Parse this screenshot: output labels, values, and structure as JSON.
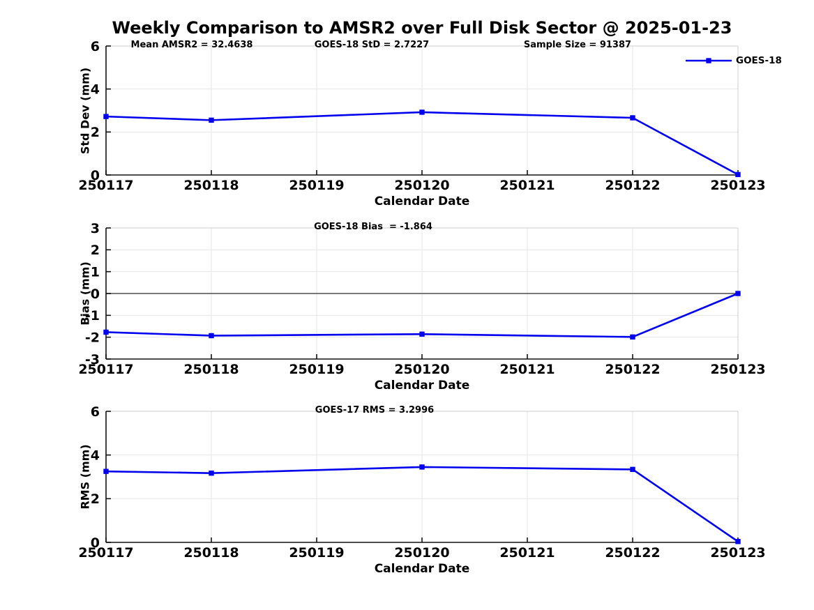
{
  "header": {
    "title": "Weekly Comparison to AMSR2 over Full Disk Sector @ 2025-01-23"
  },
  "legend": {
    "series": "GOES-18",
    "position": "upper-right-outside"
  },
  "x_axis": {
    "label": "Calendar Date",
    "categories": [
      "250117",
      "250118",
      "250119",
      "250120",
      "250121",
      "250122",
      "250123"
    ]
  },
  "colors": {
    "line": "#0000EE",
    "grid": "#e6e6e6",
    "box": "#cccccc",
    "axis": "#111111",
    "zero_line": "#4d4d4d",
    "text": "#000000",
    "background": "#ffffff"
  },
  "chart_data": [
    {
      "id": "stddev",
      "type": "line",
      "ylabel": "Std Dev (mm)",
      "xlabel": "Calendar Date",
      "ylim": [
        0,
        6
      ],
      "yticks": [
        0,
        2,
        4,
        6
      ],
      "grid": true,
      "zero_line": false,
      "show_legend": true,
      "annotations": [
        "Mean AMSR2 = 32.4638",
        "GOES-18 StD = 2.7227",
        "Sample Size = 91387"
      ],
      "series": [
        {
          "name": "GOES-18",
          "marker": "square",
          "x": [
            "250117",
            "250118",
            "250120",
            "250122",
            "250123"
          ],
          "y": [
            2.72,
            2.55,
            2.92,
            2.66,
            0.02
          ]
        }
      ]
    },
    {
      "id": "bias",
      "type": "line",
      "ylabel": "Bias (mm)",
      "xlabel": "Calendar Date",
      "ylim": [
        -3,
        3
      ],
      "yticks": [
        3,
        2,
        1,
        0,
        -1,
        -2,
        -3
      ],
      "grid": true,
      "zero_line": true,
      "show_legend": false,
      "annotations": [
        "GOES-18 Bias  = -1.864"
      ],
      "series": [
        {
          "name": "GOES-18",
          "marker": "square",
          "x": [
            "250117",
            "250118",
            "250120",
            "250122",
            "250123"
          ],
          "y": [
            -1.77,
            -1.93,
            -1.86,
            -1.99,
            0.0
          ]
        }
      ]
    },
    {
      "id": "rms",
      "type": "line",
      "ylabel": "RMS (mm)",
      "xlabel": "Calendar Date",
      "ylim": [
        0,
        6
      ],
      "yticks": [
        0,
        2,
        4,
        6
      ],
      "grid": true,
      "zero_line": false,
      "show_legend": false,
      "annotations": [
        "GOES-17 RMS = 3.2996"
      ],
      "series": [
        {
          "name": "GOES-18",
          "marker": "square",
          "x": [
            "250117",
            "250118",
            "250120",
            "250122",
            "250123"
          ],
          "y": [
            3.25,
            3.17,
            3.45,
            3.34,
            0.04
          ]
        }
      ]
    }
  ]
}
